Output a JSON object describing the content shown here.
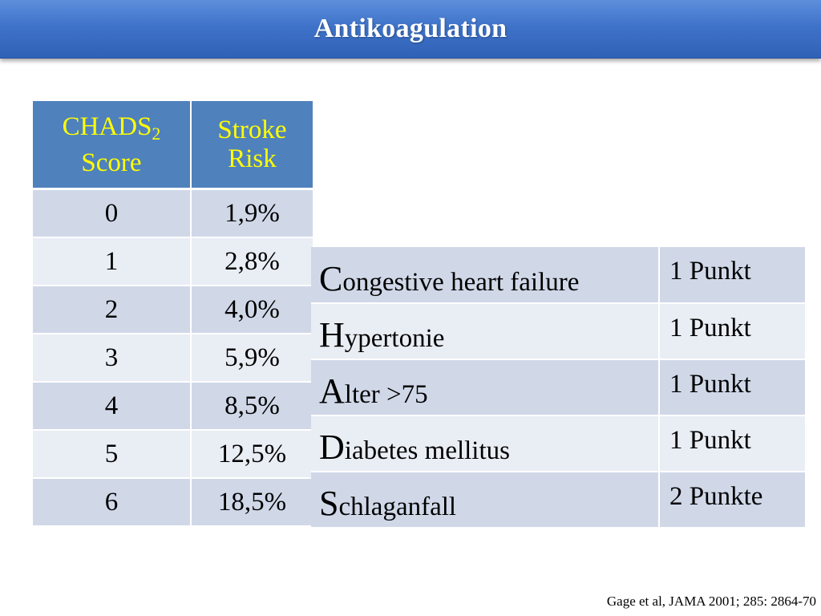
{
  "title": "Antikoagulation",
  "score_table": {
    "header": {
      "score_main": "CHADS",
      "score_sub": "2",
      "score_line2": "Score",
      "risk_line1": "Stroke",
      "risk_line2": "Risk"
    },
    "rows": [
      {
        "score": "0",
        "risk": "1,9%"
      },
      {
        "score": "1",
        "risk": "2,8%"
      },
      {
        "score": "2",
        "risk": "4,0%"
      },
      {
        "score": "3",
        "risk": "5,9%"
      },
      {
        "score": "4",
        "risk": "8,5%"
      },
      {
        "score": "5",
        "risk": "12,5%"
      },
      {
        "score": "6",
        "risk": "18,5%"
      }
    ]
  },
  "criteria_table": {
    "rows": [
      {
        "letter": "C",
        "rest": "ongestive heart failure",
        "points": "1 Punkt"
      },
      {
        "letter": "H",
        "rest": "ypertonie",
        "points": "1 Punkt"
      },
      {
        "letter": "A",
        "rest": "lter >75",
        "points": "1 Punkt"
      },
      {
        "letter": "D",
        "rest": "iabetes mellitus",
        "points": "1 Punkt"
      },
      {
        "letter": "S",
        "rest": "chlaganfall",
        "points": "2 Punkte"
      }
    ]
  },
  "citation": "Gage et al, JAMA 2001; 285: 2864-70",
  "colors": {
    "title_bar": "#3f73c9",
    "header_bg": "#4f81bd",
    "header_text": "#ffff00",
    "row_dark": "#d0d8e8",
    "row_light": "#e9edf4"
  }
}
